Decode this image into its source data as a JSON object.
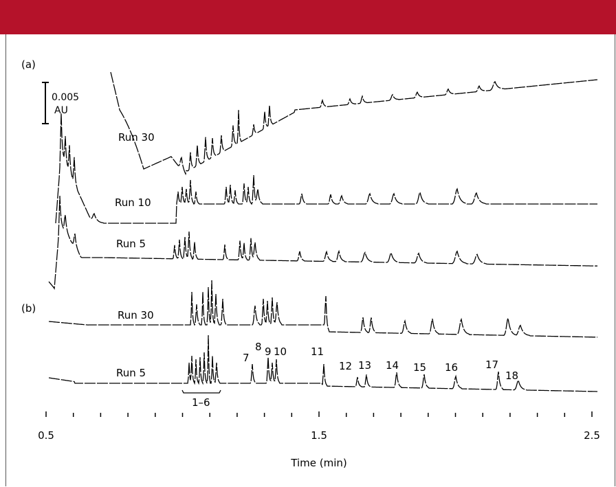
{
  "header": {
    "bar_color": "#b5122a"
  },
  "chart_data": {
    "type": "line",
    "panels": [
      {
        "label": "(a)",
        "scale_bar": {
          "value": "0.005",
          "unit": "AU"
        },
        "series": [
          {
            "name": "Run 30"
          },
          {
            "name": "Run 10"
          },
          {
            "name": "Run 5"
          }
        ]
      },
      {
        "label": "(b)",
        "series": [
          {
            "name": "Run 30"
          },
          {
            "name": "Run 5"
          }
        ],
        "peak_labels": [
          "1–6",
          "7",
          "8",
          "9",
          "10",
          "11",
          "12",
          "13",
          "14",
          "15",
          "16",
          "17",
          "18"
        ]
      }
    ],
    "x_axis": {
      "label": "Time (min)",
      "range": [
        0.5,
        2.5
      ],
      "major_ticks": [
        "0.5",
        "1.5",
        "2.5"
      ]
    }
  }
}
